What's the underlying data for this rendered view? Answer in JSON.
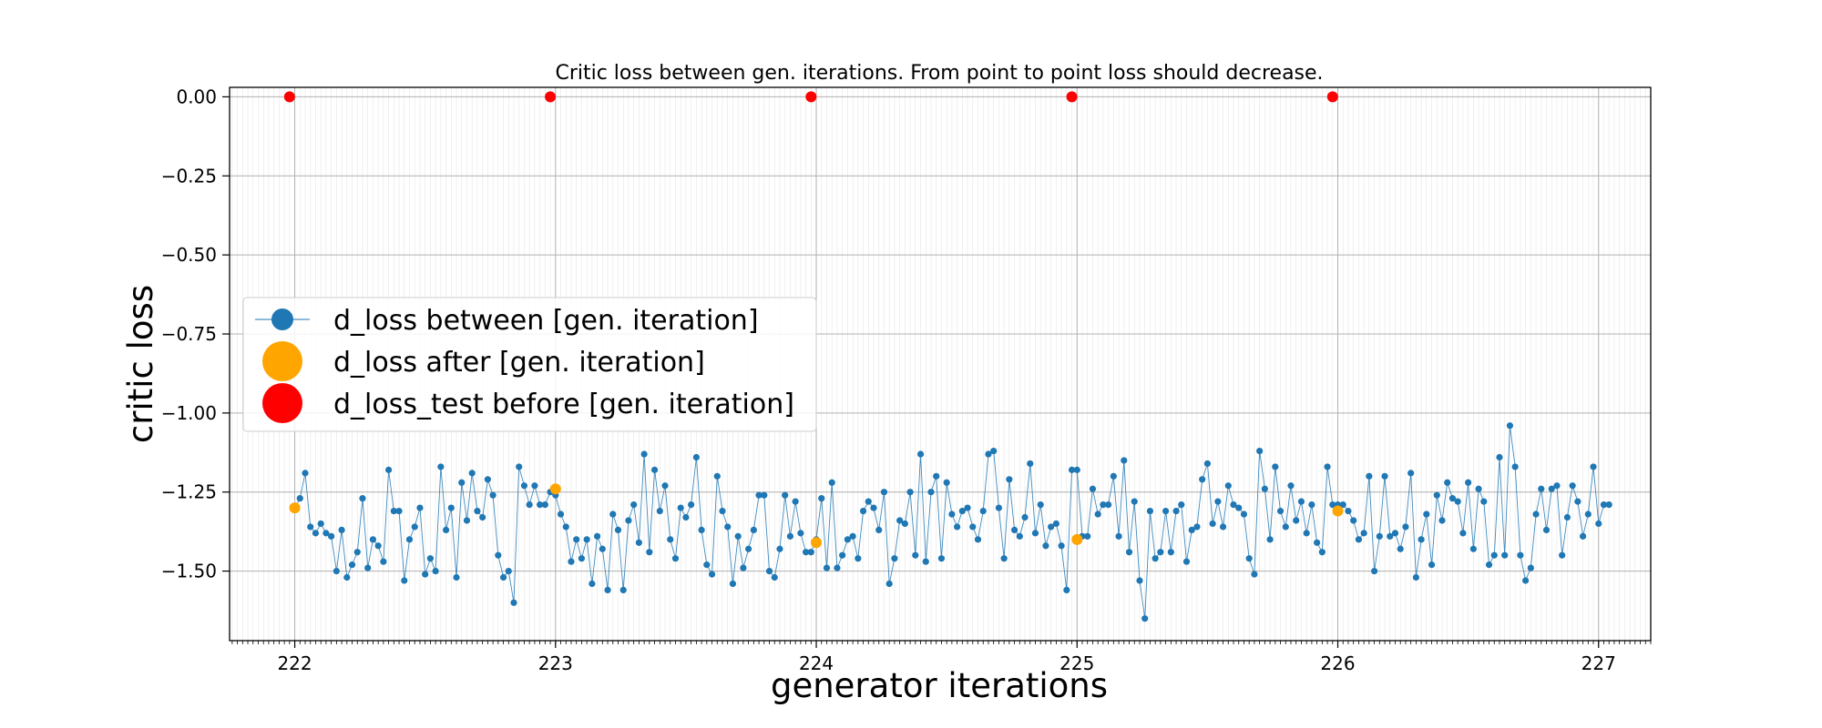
{
  "chart_data": {
    "type": "scatter",
    "title": "Critic loss between gen. iterations. From point to point loss should decrease.",
    "xlabel": "generator iterations",
    "ylabel": "critic loss",
    "xlim": [
      221.75,
      227.2
    ],
    "ylim": [
      -1.72,
      0.03
    ],
    "xticks": [
      222,
      223,
      224,
      225,
      226,
      227
    ],
    "xtick_labels": [
      "222",
      "223",
      "224",
      "225",
      "226",
      "227"
    ],
    "yticks": [
      0.0,
      -0.25,
      -0.5,
      -0.75,
      -1.0,
      -1.25,
      -1.5
    ],
    "ytick_labels": [
      "0.00",
      "−0.25",
      "−0.50",
      "−0.75",
      "−1.00",
      "−1.25",
      "−1.50"
    ],
    "minor_x_step": 0.02,
    "grid": true,
    "legend_position": "center-left",
    "series": [
      {
        "name": "d_loss between [gen. iteration]",
        "color": "#1f77b4",
        "style": "line-with-markers",
        "x_start": 222.0,
        "x_step": 0.02,
        "values": [
          -1.3,
          -1.27,
          -1.19,
          -1.36,
          -1.38,
          -1.35,
          -1.38,
          -1.39,
          -1.5,
          -1.37,
          -1.52,
          -1.48,
          -1.44,
          -1.27,
          -1.49,
          -1.4,
          -1.42,
          -1.47,
          -1.18,
          -1.31,
          -1.31,
          -1.53,
          -1.4,
          -1.36,
          -1.3,
          -1.51,
          -1.46,
          -1.5,
          -1.17,
          -1.37,
          -1.3,
          -1.52,
          -1.22,
          -1.34,
          -1.19,
          -1.31,
          -1.33,
          -1.21,
          -1.26,
          -1.45,
          -1.52,
          -1.5,
          -1.6,
          -1.17,
          -1.23,
          -1.29,
          -1.23,
          -1.29,
          -1.29,
          -1.25,
          -1.26,
          -1.32,
          -1.36,
          -1.47,
          -1.4,
          -1.46,
          -1.4,
          -1.54,
          -1.39,
          -1.43,
          -1.56,
          -1.32,
          -1.37,
          -1.56,
          -1.34,
          -1.29,
          -1.41,
          -1.13,
          -1.44,
          -1.18,
          -1.31,
          -1.23,
          -1.4,
          -1.46,
          -1.3,
          -1.33,
          -1.29,
          -1.14,
          -1.37,
          -1.48,
          -1.51,
          -1.2,
          -1.31,
          -1.36,
          -1.54,
          -1.39,
          -1.49,
          -1.43,
          -1.37,
          -1.26,
          -1.26,
          -1.5,
          -1.52,
          -1.43,
          -1.26,
          -1.39,
          -1.28,
          -1.38,
          -1.44,
          -1.44,
          -1.4,
          -1.27,
          -1.49,
          -1.22,
          -1.49,
          -1.45,
          -1.4,
          -1.39,
          -1.46,
          -1.31,
          -1.28,
          -1.3,
          -1.37,
          -1.25,
          -1.54,
          -1.46,
          -1.34,
          -1.35,
          -1.25,
          -1.45,
          -1.13,
          -1.47,
          -1.25,
          -1.2,
          -1.46,
          -1.22,
          -1.32,
          -1.36,
          -1.31,
          -1.3,
          -1.36,
          -1.4,
          -1.31,
          -1.13,
          -1.12,
          -1.3,
          -1.46,
          -1.21,
          -1.37,
          -1.39,
          -1.33,
          -1.16,
          -1.38,
          -1.29,
          -1.42,
          -1.36,
          -1.35,
          -1.42,
          -1.56,
          -1.18,
          -1.18,
          -1.39,
          -1.39,
          -1.24,
          -1.32,
          -1.29,
          -1.29,
          -1.2,
          -1.39,
          -1.15,
          -1.44,
          -1.28,
          -1.53,
          -1.65,
          -1.31,
          -1.46,
          -1.44,
          -1.31,
          -1.44,
          -1.31,
          -1.29,
          -1.47,
          -1.37,
          -1.36,
          -1.21,
          -1.16,
          -1.35,
          -1.28,
          -1.36,
          -1.23,
          -1.29,
          -1.3,
          -1.32,
          -1.46,
          -1.51,
          -1.12,
          -1.24,
          -1.4,
          -1.17,
          -1.31,
          -1.36,
          -1.23,
          -1.34,
          -1.28,
          -1.38,
          -1.29,
          -1.41,
          -1.44,
          -1.17,
          -1.29,
          -1.29,
          -1.29,
          -1.31,
          -1.34,
          -1.4,
          -1.38,
          -1.2,
          -1.5,
          -1.39,
          -1.2,
          -1.39,
          -1.38,
          -1.43,
          -1.36,
          -1.19,
          -1.52,
          -1.4,
          -1.32,
          -1.48,
          -1.26,
          -1.34,
          -1.22,
          -1.27,
          -1.28,
          -1.38,
          -1.22,
          -1.43,
          -1.24,
          -1.28,
          -1.48,
          -1.45,
          -1.14,
          -1.45,
          -1.04,
          -1.17,
          -1.45,
          -1.53,
          -1.49,
          -1.32,
          -1.24,
          -1.37,
          -1.24,
          -1.23,
          -1.45,
          -1.33,
          -1.23,
          -1.28,
          -1.39,
          -1.32,
          -1.17,
          -1.35,
          -1.29,
          -1.29
        ]
      },
      {
        "name": "d_loss after [gen. iteration]",
        "color": "#ffa500",
        "style": "markers",
        "x": [
          222.0,
          223.0,
          224.0,
          225.0,
          226.0
        ],
        "values": [
          -1.3,
          -1.24,
          -1.41,
          -1.4,
          -1.31
        ]
      },
      {
        "name": "d_loss_test before [gen. iteration]",
        "color": "#ff0000",
        "style": "markers",
        "x": [
          221.98,
          222.98,
          223.98,
          224.98,
          225.98
        ],
        "values": [
          0.0,
          0.0,
          0.0,
          0.0,
          0.0
        ]
      }
    ]
  }
}
